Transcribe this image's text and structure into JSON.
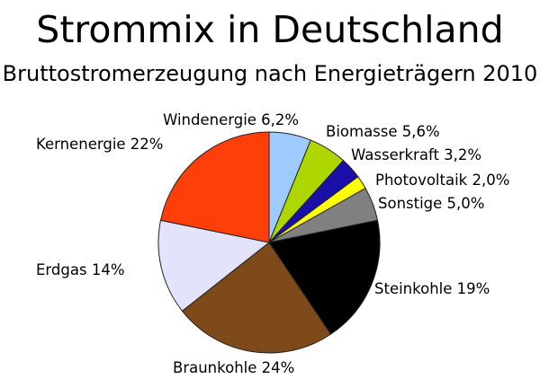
{
  "chart_data": {
    "type": "pie",
    "title": "Strommix in Deutschland",
    "subtitle": "Bruttostromerzeugung nach Energieträgern 2010",
    "start": "top",
    "direction": "clockwise",
    "slices": [
      {
        "label": "Windenergie 6,2%",
        "value": 6.2,
        "color": "#9ecbff"
      },
      {
        "label": "Biomasse 5,6%",
        "value": 5.6,
        "color": "#aed600"
      },
      {
        "label": "Wasserkraft 3,2%",
        "value": 3.2,
        "color": "#1a0fa8"
      },
      {
        "label": "Photovoltaik 2,0%",
        "value": 2.0,
        "color": "#ffff00"
      },
      {
        "label": "Sonstige 5,0%",
        "value": 5.0,
        "color": "#808080"
      },
      {
        "label": "Steinkohle 19%",
        "value": 19,
        "color": "#000000"
      },
      {
        "label": "Braunkohle 24%",
        "value": 24,
        "color": "#7f4a1a"
      },
      {
        "label": "Erdgas 14%",
        "value": 14,
        "color": "#e3e3fb"
      },
      {
        "label": "Kernenergie 22%",
        "value": 22,
        "color": "#ff3f0a"
      }
    ]
  }
}
